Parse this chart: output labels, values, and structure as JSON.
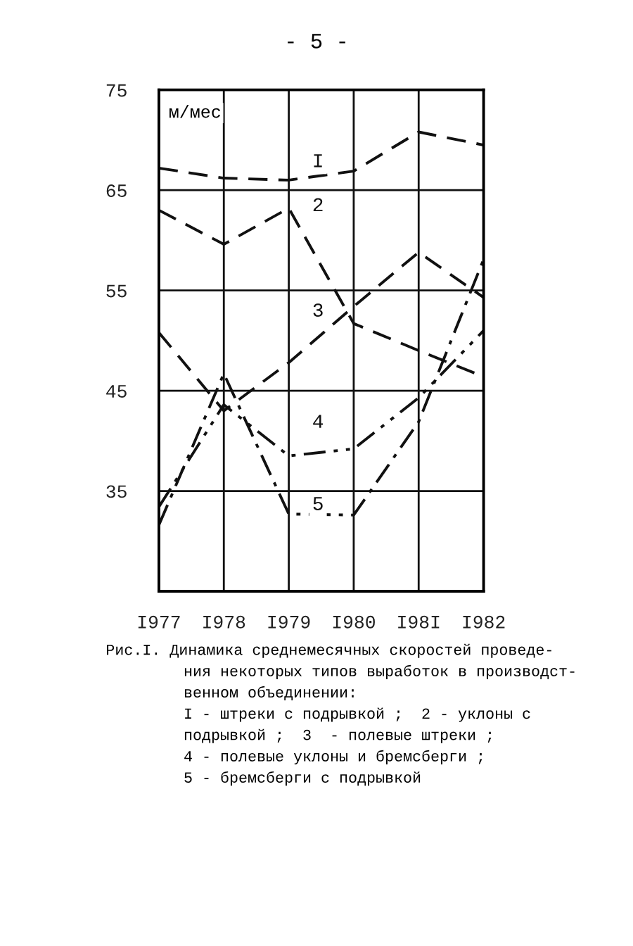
{
  "chart_data": {
    "type": "line",
    "categories": [
      "I977",
      "I978",
      "I979",
      "I980",
      "I98I",
      "I982"
    ],
    "ylabel": "м/мес",
    "ylim": [
      25,
      75
    ],
    "yticks": [
      35,
      45,
      55,
      65,
      75
    ],
    "grid": true,
    "legend": false,
    "marker": "none",
    "series": [
      {
        "name": "I",
        "color": "#111111",
        "line_style": "dashed",
        "values": [
          67.2,
          66.2,
          66.0,
          66.9,
          70.8,
          69.5
        ]
      },
      {
        "name": "2",
        "color": "#111111",
        "line_style": "dashed",
        "values": [
          63.0,
          59.6,
          63.2,
          51.7,
          49.0,
          46.4
        ]
      },
      {
        "name": "3",
        "color": "#111111",
        "line_style": "dashed",
        "values": [
          50.8,
          43.0,
          47.8,
          53.4,
          58.8,
          54.3
        ]
      },
      {
        "name": "4",
        "color": "#111111",
        "line_style": "dashdotdot",
        "values": [
          33.4,
          43.6,
          38.5,
          39.2,
          44.3,
          51.0
        ]
      },
      {
        "name": "5",
        "color": "#111111",
        "line_style": "dashdot",
        "values": [
          31.6,
          46.7,
          32.7,
          32.6,
          41.9,
          58.1
        ]
      }
    ],
    "annotations": [
      "- 5 -",
      "Рис.I. Динамика среднемесячных скоростей проведе-",
      "ния некоторых типов выработок в производст-",
      "венном объединении:",
      "I - штреки с подрывкой ;  2 - уклоны с",
      "подрывкой ;  3  - полевые штреки ;",
      "4 - полевые уклоны и бремсберги ;",
      "5 - бремсберги с подрывкой"
    ]
  }
}
